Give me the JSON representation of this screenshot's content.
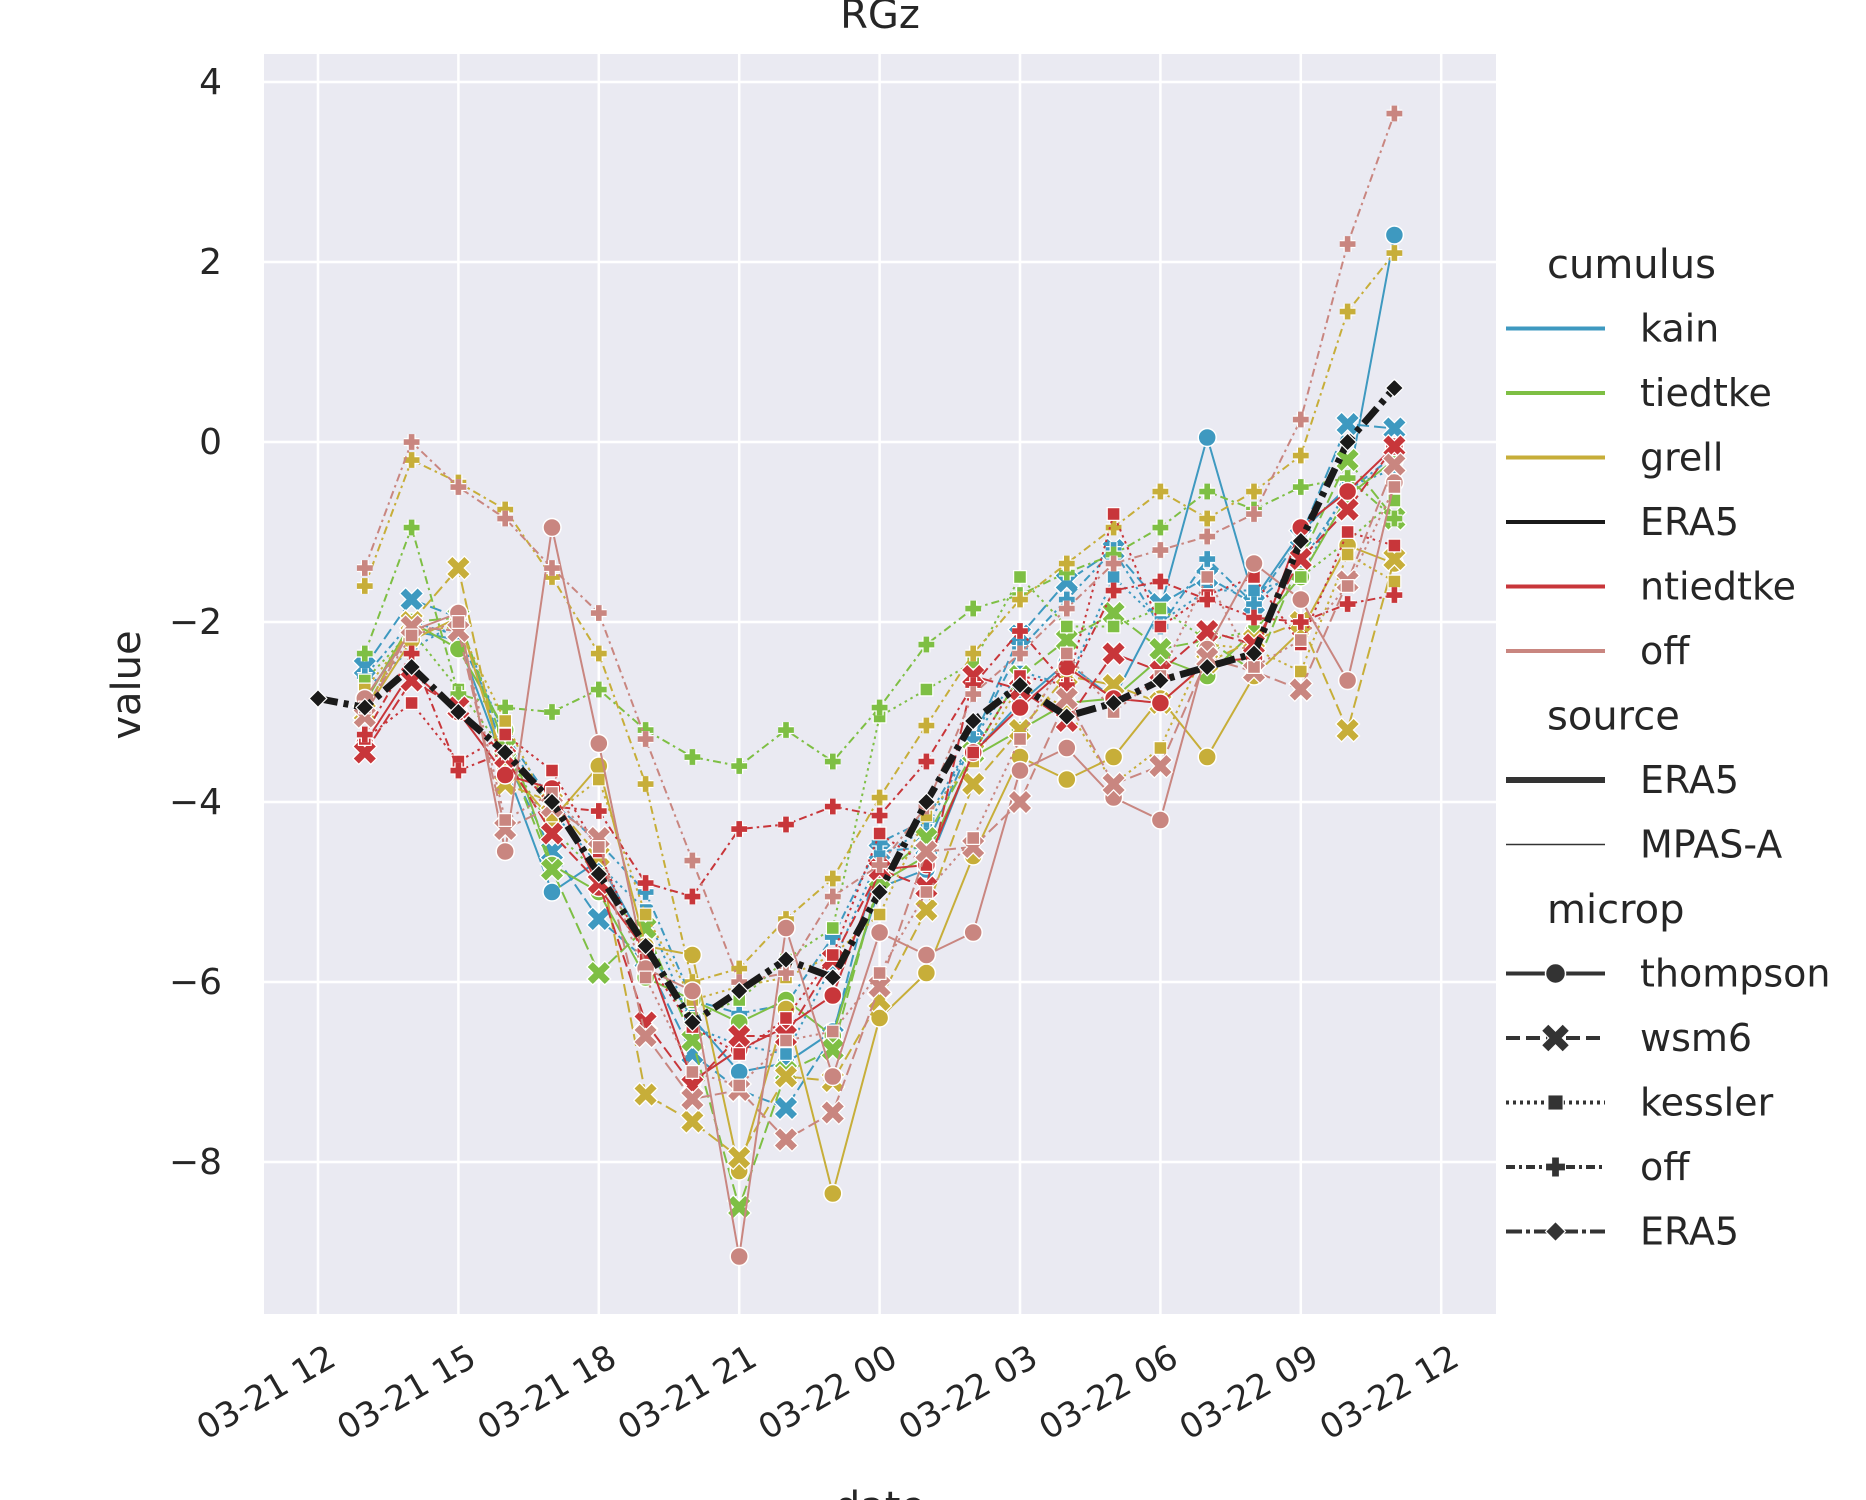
{
  "chart_data": {
    "type": "line",
    "title": "RGz",
    "xlabel": "date",
    "ylabel": "value",
    "ylim": [
      -9.7,
      4.3
    ],
    "xlim_hours": [
      -1.2,
      25.1
    ],
    "x_note": "x values are hours after 03-21 12",
    "grid": true,
    "xticks": [
      {
        "h": 0,
        "label": "03-21 12"
      },
      {
        "h": 3,
        "label": "03-21 15"
      },
      {
        "h": 6,
        "label": "03-21 18"
      },
      {
        "h": 9,
        "label": "03-21 21"
      },
      {
        "h": 12,
        "label": "03-22 00"
      },
      {
        "h": 15,
        "label": "03-22 03"
      },
      {
        "h": 18,
        "label": "03-22 06"
      },
      {
        "h": 21,
        "label": "03-22 09"
      },
      {
        "h": 24,
        "label": "03-22 12"
      }
    ],
    "yticks": [
      {
        "v": 4,
        "label": "4"
      },
      {
        "v": 2,
        "label": "2"
      },
      {
        "v": 0,
        "label": "0"
      },
      {
        "v": -2,
        "label": "−2"
      },
      {
        "v": -4,
        "label": "−4"
      },
      {
        "v": -6,
        "label": "−6"
      },
      {
        "v": -8,
        "label": "−8"
      }
    ],
    "hours": [
      0,
      1,
      2,
      3,
      4,
      5,
      6,
      7,
      8,
      9,
      10,
      11,
      12,
      13,
      14,
      15,
      16,
      17,
      18,
      19,
      20,
      21,
      22,
      23,
      24
    ],
    "series": [
      {
        "name": "ERA5",
        "cumulus": "ERA5",
        "source": "ERA5",
        "microp": "ERA5",
        "start": 0,
        "values": [
          -2.85,
          -2.95,
          -2.5,
          -3.0,
          -3.45,
          -4.0,
          -4.8,
          -5.6,
          -6.45,
          -6.1,
          -5.75,
          -5.95,
          -5.0,
          -4.0,
          -3.1,
          -2.7,
          -3.05,
          -2.9,
          -2.65,
          -2.5,
          -2.35,
          -1.1,
          0.0,
          0.6
        ]
      },
      {
        "name": "kain-thompson",
        "cumulus": "kain",
        "source": "MPAS-A",
        "microp": "thompson",
        "start": 1,
        "values": [
          -2.85,
          -2.1,
          -2.2,
          -3.6,
          -5.0,
          -4.65,
          -5.6,
          -6.4,
          -7.0,
          -6.9,
          -6.55,
          -4.95,
          -4.75,
          -3.45,
          -2.9,
          -2.45,
          -2.85,
          -1.85,
          0.05,
          -1.75,
          -1.0,
          -0.5,
          2.3
        ]
      },
      {
        "name": "kain-wsm6",
        "cumulus": "kain",
        "source": "MPAS-A",
        "microp": "wsm6",
        "start": 1,
        "values": [
          -2.5,
          -1.75,
          -1.95,
          -3.5,
          -4.55,
          -5.3,
          -5.75,
          -6.8,
          -7.2,
          -7.4,
          -6.6,
          -4.55,
          -4.5,
          -3.3,
          -2.15,
          -1.55,
          -1.2,
          -1.8,
          -1.5,
          -1.8,
          -1.05,
          0.2,
          0.15
        ]
      },
      {
        "name": "kain-kessler",
        "cumulus": "kain",
        "source": "MPAS-A",
        "microp": "kessler",
        "start": 1,
        "values": [
          -2.75,
          -2.3,
          -2.0,
          -3.3,
          -4.1,
          -4.7,
          -5.2,
          -6.5,
          -6.7,
          -6.8,
          -5.8,
          -4.6,
          -4.3,
          -3.3,
          -2.55,
          -2.7,
          -1.5,
          -2.0,
          -1.65,
          -1.65,
          -1.5,
          -0.5,
          -0.3
        ]
      },
      {
        "name": "kain-off",
        "cumulus": "kain",
        "source": "MPAS-A",
        "microp": "off",
        "start": 1,
        "values": [
          -2.6,
          -2.0,
          -2.15,
          -3.25,
          -4.0,
          -4.45,
          -5.0,
          -6.2,
          -6.35,
          -6.25,
          -5.5,
          -4.45,
          -4.2,
          -3.3,
          -2.3,
          -1.75,
          -1.2,
          -2.05,
          -1.3,
          -1.8,
          -1.35,
          -0.55,
          -0.15
        ]
      },
      {
        "name": "tiedtke-thompson",
        "cumulus": "tiedtke",
        "source": "MPAS-A",
        "microp": "thompson",
        "start": 1,
        "values": [
          -2.9,
          -2.0,
          -2.3,
          -3.2,
          -4.7,
          -5.0,
          -5.95,
          -6.2,
          -6.45,
          -6.2,
          -6.6,
          -4.9,
          -4.6,
          -3.5,
          -3.2,
          -2.9,
          -2.85,
          -2.4,
          -2.6,
          -2.1,
          -1.5,
          -0.6,
          -0.2
        ]
      },
      {
        "name": "tiedtke-wsm6",
        "cumulus": "tiedtke",
        "source": "MPAS-A",
        "microp": "wsm6",
        "start": 1,
        "values": [
          -3.0,
          -2.0,
          -1.95,
          -3.4,
          -4.75,
          -5.9,
          -5.4,
          -6.65,
          -8.5,
          -7.0,
          -6.75,
          -4.85,
          -4.4,
          -3.45,
          -2.6,
          -2.2,
          -1.9,
          -2.3,
          -2.2,
          -2.55,
          -1.3,
          -0.2,
          -0.85
        ]
      },
      {
        "name": "tiedtke-kessler",
        "cumulus": "tiedtke",
        "source": "MPAS-A",
        "microp": "kessler",
        "start": 1,
        "values": [
          -2.65,
          -2.1,
          -2.75,
          -3.45,
          -4.3,
          -4.8,
          -5.6,
          -6.4,
          -6.2,
          -5.75,
          -5.4,
          -3.05,
          -2.75,
          -2.45,
          -1.5,
          -2.05,
          -2.05,
          -1.85,
          -2.2,
          -2.1,
          -1.5,
          -1.1,
          -0.65
        ]
      },
      {
        "name": "tiedtke-off",
        "cumulus": "tiedtke",
        "source": "MPAS-A",
        "microp": "off",
        "start": 1,
        "values": [
          -2.35,
          -0.95,
          -2.8,
          -2.95,
          -3.0,
          -2.75,
          -3.2,
          -3.5,
          -3.6,
          -3.2,
          -3.55,
          -2.95,
          -2.25,
          -1.85,
          -1.7,
          -1.45,
          -1.25,
          -0.95,
          -0.55,
          -0.75,
          -0.5,
          -0.4,
          -0.85
        ]
      },
      {
        "name": "grell-thompson",
        "cumulus": "grell",
        "source": "MPAS-A",
        "microp": "thompson",
        "start": 1,
        "values": [
          -3.0,
          -2.2,
          -1.95,
          -3.6,
          -4.2,
          -3.6,
          -5.6,
          -5.7,
          -8.1,
          -6.3,
          -8.35,
          -6.4,
          -5.9,
          -4.6,
          -3.5,
          -3.75,
          -3.5,
          -2.85,
          -3.5,
          -2.6,
          -2.1,
          -1.15,
          -1.35
        ]
      },
      {
        "name": "grell-wsm6",
        "cumulus": "grell",
        "source": "MPAS-A",
        "microp": "wsm6",
        "start": 1,
        "values": [
          -3.0,
          -2.0,
          -1.4,
          -3.8,
          -4.0,
          -4.6,
          -7.25,
          -7.55,
          -7.95,
          -7.05,
          -7.1,
          -6.2,
          -5.2,
          -3.8,
          -3.2,
          -2.6,
          -2.7,
          -2.9,
          -2.45,
          -2.2,
          -2.0,
          -3.2,
          -1.3
        ]
      },
      {
        "name": "grell-kessler",
        "cumulus": "grell",
        "source": "MPAS-A",
        "microp": "kessler",
        "start": 1,
        "values": [
          -2.75,
          -2.1,
          -2.05,
          -3.1,
          -4.15,
          -3.75,
          -5.25,
          -6.2,
          -6.05,
          -5.95,
          -5.7,
          -5.25,
          -4.15,
          -3.55,
          -2.7,
          -2.95,
          -3.8,
          -3.4,
          -2.25,
          -2.3,
          -2.55,
          -1.25,
          -1.55
        ]
      },
      {
        "name": "grell-off",
        "cumulus": "grell",
        "source": "MPAS-A",
        "microp": "off",
        "start": 1,
        "values": [
          -1.6,
          -0.2,
          -0.45,
          -0.75,
          -1.5,
          -2.35,
          -3.8,
          -6.0,
          -5.85,
          -5.3,
          -4.85,
          -3.95,
          -3.15,
          -2.35,
          -1.75,
          -1.35,
          -0.95,
          -0.55,
          -0.85,
          -0.55,
          -0.15,
          1.45,
          2.1
        ]
      },
      {
        "name": "ntiedtke-thompson",
        "cumulus": "ntiedtke",
        "source": "MPAS-A",
        "microp": "thompson",
        "start": 1,
        "values": [
          -3.35,
          -2.55,
          -3.0,
          -3.7,
          -3.85,
          -4.95,
          -5.65,
          -7.1,
          -6.75,
          -6.5,
          -6.15,
          -4.75,
          -4.7,
          -3.45,
          -2.95,
          -2.5,
          -2.85,
          -2.9,
          -2.45,
          -2.4,
          -0.95,
          -0.55,
          -0.05
        ]
      },
      {
        "name": "ntiedtke-wsm6",
        "cumulus": "ntiedtke",
        "source": "MPAS-A",
        "microp": "wsm6",
        "start": 1,
        "values": [
          -3.45,
          -2.65,
          -2.95,
          -3.5,
          -4.35,
          -4.9,
          -6.45,
          -7.15,
          -6.6,
          -6.6,
          -5.75,
          -4.75,
          -4.95,
          -2.6,
          -2.75,
          -3.1,
          -2.35,
          -2.55,
          -2.1,
          -2.25,
          -1.3,
          -0.75,
          -0.05
        ]
      },
      {
        "name": "ntiedtke-kessler",
        "cumulus": "ntiedtke",
        "source": "MPAS-A",
        "microp": "kessler",
        "start": 1,
        "values": [
          -3.3,
          -2.9,
          -3.55,
          -3.25,
          -3.65,
          -4.55,
          -5.75,
          -6.5,
          -6.8,
          -6.4,
          -5.7,
          -4.35,
          -4.7,
          -3.45,
          -2.6,
          -2.7,
          -0.8,
          -2.05,
          -1.7,
          -1.5,
          -2.25,
          -1.0,
          -1.15
        ]
      },
      {
        "name": "ntiedtke-off",
        "cumulus": "ntiedtke",
        "source": "MPAS-A",
        "microp": "off",
        "start": 1,
        "values": [
          -3.25,
          -2.35,
          -3.65,
          -3.45,
          -4.05,
          -4.1,
          -4.9,
          -5.05,
          -4.3,
          -4.25,
          -4.05,
          -4.15,
          -3.55,
          -2.7,
          -2.1,
          -2.7,
          -1.65,
          -1.55,
          -1.75,
          -1.95,
          -2.0,
          -1.8,
          -1.7
        ]
      },
      {
        "name": "off-thompson",
        "cumulus": "off",
        "source": "MPAS-A",
        "microp": "thompson",
        "start": 1,
        "values": [
          -2.85,
          -2.1,
          -1.9,
          -4.55,
          -0.95,
          -3.35,
          -5.85,
          -6.1,
          -9.05,
          -5.4,
          -7.05,
          -5.45,
          -5.7,
          -5.45,
          -3.65,
          -3.4,
          -3.95,
          -4.2,
          -2.3,
          -1.35,
          -1.75,
          -2.65,
          -0.45
        ]
      },
      {
        "name": "off-wsm6",
        "cumulus": "off",
        "source": "MPAS-A",
        "microp": "wsm6",
        "start": 1,
        "values": [
          -3.05,
          -2.05,
          -2.1,
          -4.3,
          -4.05,
          -4.4,
          -6.6,
          -7.3,
          -7.2,
          -7.75,
          -7.45,
          -6.05,
          -4.55,
          -4.5,
          -4.0,
          -2.85,
          -3.8,
          -3.6,
          -2.4,
          -2.55,
          -2.75,
          -1.55,
          -0.25
        ]
      },
      {
        "name": "off-kessler",
        "cumulus": "off",
        "source": "MPAS-A",
        "microp": "kessler",
        "start": 1,
        "values": [
          -2.95,
          -2.15,
          -2.0,
          -4.2,
          -3.9,
          -4.5,
          -5.95,
          -7.0,
          -7.15,
          -6.65,
          -6.55,
          -5.9,
          -5.0,
          -4.4,
          -3.3,
          -2.35,
          -3.0,
          -2.6,
          -1.5,
          -2.5,
          -2.2,
          -1.6,
          -0.5
        ]
      },
      {
        "name": "off-off",
        "cumulus": "off",
        "source": "MPAS-A",
        "microp": "off",
        "start": 1,
        "values": [
          -1.4,
          0.0,
          -0.5,
          -0.85,
          -1.4,
          -1.9,
          -3.3,
          -4.65,
          -6.0,
          -5.9,
          -5.05,
          -4.7,
          -4.05,
          -2.8,
          -2.35,
          -1.85,
          -1.35,
          -1.2,
          -1.05,
          -0.8,
          0.25,
          2.2,
          3.65
        ]
      }
    ],
    "legend": {
      "placement": "right",
      "sections": [
        {
          "title": "cumulus",
          "entries": [
            {
              "label": "kain",
              "kind": "color",
              "color": "#3E99C0"
            },
            {
              "label": "tiedtke",
              "kind": "color",
              "color": "#7EBF44"
            },
            {
              "label": "grell",
              "kind": "color",
              "color": "#C7AE39"
            },
            {
              "label": "ERA5",
              "kind": "color",
              "color": "#1a1a1a"
            },
            {
              "label": "ntiedtke",
              "kind": "color",
              "color": "#C8363A"
            },
            {
              "label": "off",
              "kind": "color",
              "color": "#C98680"
            }
          ]
        },
        {
          "title": "source",
          "entries": [
            {
              "label": "ERA5",
              "kind": "width",
              "width": 6
            },
            {
              "label": "MPAS-A",
              "kind": "width",
              "width": 1.5
            }
          ]
        },
        {
          "title": "microp",
          "entries": [
            {
              "label": "thompson",
              "kind": "style",
              "marker": "circle",
              "dash": ""
            },
            {
              "label": "wsm6",
              "kind": "style",
              "marker": "x",
              "dash": "14,6"
            },
            {
              "label": "kessler",
              "kind": "style",
              "marker": "square",
              "dash": "3,4"
            },
            {
              "label": "off",
              "kind": "style",
              "marker": "plus",
              "dash": "9,4,3,4"
            },
            {
              "label": "ERA5",
              "kind": "style",
              "marker": "diamond",
              "dash": "16,4,4,4"
            }
          ]
        }
      ]
    }
  },
  "colors": {
    "background": "#EAEAF2",
    "grid": "#FFFFFF",
    "kain": "#3E99C0",
    "tiedtke": "#7EBF44",
    "grell": "#C7AE39",
    "ERA5": "#1a1a1a",
    "ntiedtke": "#C8363A",
    "off": "#C98680"
  }
}
